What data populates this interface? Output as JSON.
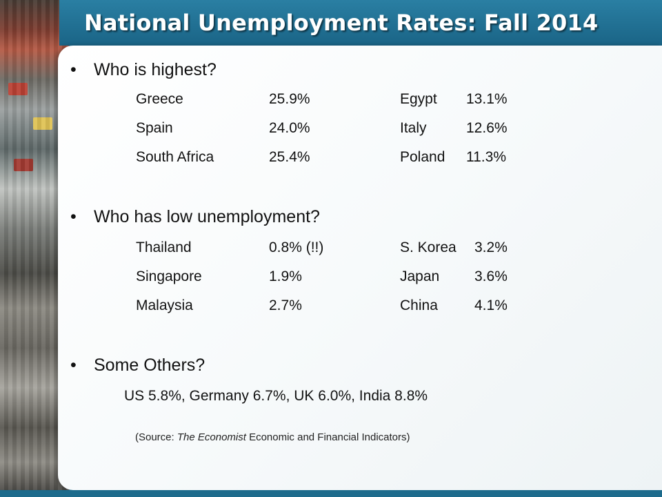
{
  "title": "National Unemployment Rates: Fall 2014",
  "sections": {
    "highest": {
      "heading": "Who is highest?",
      "rows": [
        {
          "country_a": "Greece",
          "rate_a": "25.9%",
          "country_b": "Egypt",
          "rate_b": "13.1%"
        },
        {
          "country_a": "Spain",
          "rate_a": "24.0%",
          "country_b": "Italy",
          "rate_b": "12.6%"
        },
        {
          "country_a": "South Africa",
          "rate_a": "25.4%",
          "country_b": "Poland",
          "rate_b": "11.3%"
        }
      ]
    },
    "low": {
      "heading": "Who has low unemployment?",
      "rows": [
        {
          "country_a": "Thailand",
          "rate_a": "0.8%  (!!)",
          "country_b": "S. Korea",
          "rate_b": "3.2%"
        },
        {
          "country_a": "Singapore",
          "rate_a": "1.9%",
          "country_b": "Japan",
          "rate_b": "3.6%"
        },
        {
          "country_a": "Malaysia",
          "rate_a": "2.7%",
          "country_b": "China",
          "rate_b": "4.1%"
        }
      ]
    },
    "others": {
      "heading": "Some Others?",
      "line": "US  5.8%,  Germany  6.7%, UK  6.0%, India  8.8%"
    }
  },
  "source": {
    "prefix": "(Source: ",
    "publication": "The Economist",
    "suffix": " Economic and Financial Indicators)"
  },
  "colors": {
    "band": "#1d6b8c",
    "title_text": "#ffffff",
    "body_text": "#111111"
  }
}
